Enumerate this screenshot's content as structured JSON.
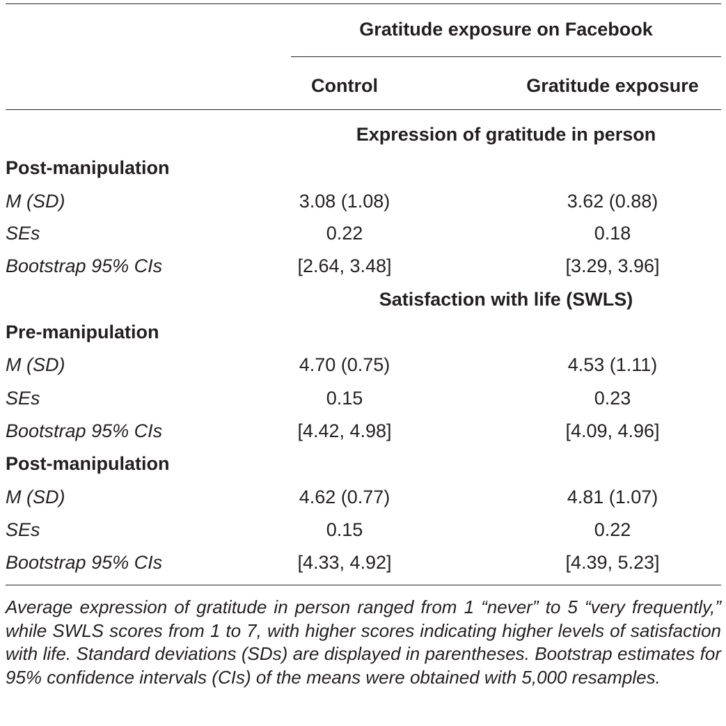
{
  "header": {
    "group_title": "Gratitude exposure on Facebook",
    "col_control": "Control",
    "col_exposure": "Gratitude exposure"
  },
  "sections": [
    {
      "measure": "Expression of gratitude in person",
      "blocks": [
        {
          "phase": "Post-manipulation",
          "rows": [
            {
              "label": "M (SD)",
              "control": "3.08 (1.08)",
              "exposure": "3.62 (0.88)"
            },
            {
              "label": "SEs",
              "control": "0.22",
              "exposure": "0.18"
            },
            {
              "label": "Bootstrap 95% CIs",
              "control": "[2.64, 3.48]",
              "exposure": "[3.29, 3.96]"
            }
          ]
        }
      ]
    },
    {
      "measure": "Satisfaction with life (SWLS)",
      "blocks": [
        {
          "phase": "Pre-manipulation",
          "rows": [
            {
              "label": "M (SD)",
              "control": "4.70 (0.75)",
              "exposure": "4.53 (1.11)"
            },
            {
              "label": "SEs",
              "control": "0.15",
              "exposure": "0.23"
            },
            {
              "label": "Bootstrap 95% CIs",
              "control": "[4.42, 4.98]",
              "exposure": "[4.09, 4.96]"
            }
          ]
        },
        {
          "phase": "Post-manipulation",
          "rows": [
            {
              "label": "M (SD)",
              "control": "4.62 (0.77)",
              "exposure": "4.81 (1.07)"
            },
            {
              "label": "SEs",
              "control": "0.15",
              "exposure": "0.22"
            },
            {
              "label": "Bootstrap 95% CIs",
              "control": "[4.33, 4.92]",
              "exposure": "[4.39, 5.23]"
            }
          ]
        }
      ]
    }
  ],
  "footnote": "Average expression of gratitude in person ranged from 1 “never” to 5 “very frequently,” while SWLS scores from 1 to 7, with higher scores indicating higher levels of satisfaction with life. Standard deviations (SDs) are displayed in parentheses. Bootstrap estimates for 95% confidence intervals (CIs) of the means were obtained with 5,000 resamples."
}
